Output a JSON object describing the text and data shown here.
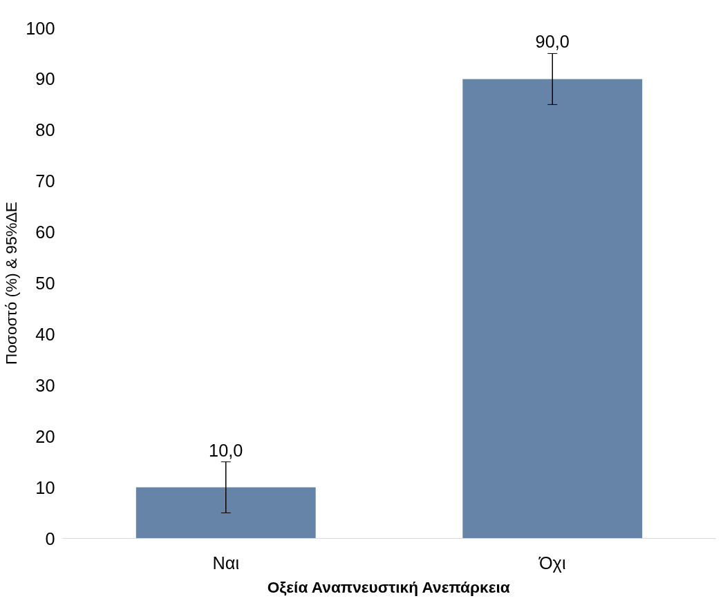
{
  "chart_data": {
    "type": "bar",
    "xlabel": "Οξεία Αναπνευστική Ανεπάρκεια",
    "ylabel": "Ποσοστό (%) & 95%ΔΕ",
    "categories": [
      "Ναι",
      "Όχι"
    ],
    "values": [
      10,
      90
    ],
    "color": "#6683a8",
    "errors": [
      [
        5,
        15
      ],
      [
        85,
        95
      ]
    ],
    "value_labels": [
      "10,0",
      "90,0"
    ],
    "ylim": [
      0,
      100
    ],
    "yticks": [
      0,
      10,
      20,
      30,
      40,
      50,
      60,
      70,
      80,
      90,
      100
    ]
  }
}
